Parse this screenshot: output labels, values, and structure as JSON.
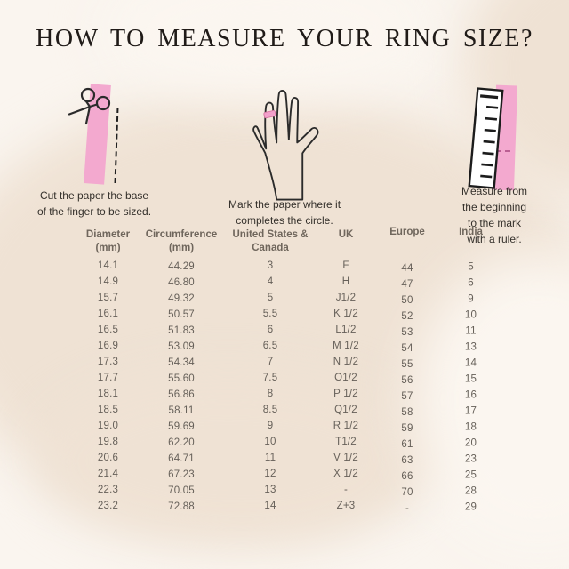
{
  "title": "HOW TO MEASURE YOUR RING SIZE?",
  "steps": [
    {
      "icon": "scissors-icon",
      "caption_line1": "Cut the paper the base",
      "caption_line2": "of the finger to be sized."
    },
    {
      "icon": "hand-ring-icon",
      "caption_line1": "Mark the paper where it",
      "caption_line2": "completes the circle."
    },
    {
      "icon": "ruler-icon",
      "caption_line1": "Measure from the beginning",
      "caption_line2": "to the mark with a ruler."
    }
  ],
  "table": {
    "headers": [
      {
        "lines": [
          "Diameter",
          "(mm)"
        ]
      },
      {
        "lines": [
          "Circumference",
          "(mm)"
        ]
      },
      {
        "lines": [
          "United States &",
          "Canada"
        ]
      },
      {
        "lines": [
          "UK"
        ]
      },
      {
        "lines": [
          "Europe"
        ]
      },
      {
        "lines": [
          "India"
        ]
      }
    ],
    "rows": [
      [
        "14.1",
        "44.29",
        "3",
        "F",
        "44",
        "5"
      ],
      [
        "14.9",
        "46.80",
        "4",
        "H",
        "47",
        "6"
      ],
      [
        "15.7",
        "49.32",
        "5",
        "J1/2",
        "50",
        "9"
      ],
      [
        "16.1",
        "50.57",
        "5.5",
        "K 1/2",
        "52",
        "10"
      ],
      [
        "16.5",
        "51.83",
        "6",
        "L1/2",
        "53",
        "11"
      ],
      [
        "16.9",
        "53.09",
        "6.5",
        "M 1/2",
        "54",
        "13"
      ],
      [
        "17.3",
        "54.34",
        "7",
        "N 1/2",
        "55",
        "14"
      ],
      [
        "17.7",
        "55.60",
        "7.5",
        "O1/2",
        "56",
        "15"
      ],
      [
        "18.1",
        "56.86",
        "8",
        "P 1/2",
        "57",
        "16"
      ],
      [
        "18.5",
        "58.11",
        "8.5",
        "Q1/2",
        "58",
        "17"
      ],
      [
        "19.0",
        "59.69",
        "9",
        "R 1/2",
        "59",
        "18"
      ],
      [
        "19.8",
        "62.20",
        "10",
        "T1/2",
        "61",
        "20"
      ],
      [
        "20.6",
        "64.71",
        "11",
        "V 1/2",
        "63",
        "23"
      ],
      [
        "21.4",
        "67.23",
        "12",
        "X 1/2",
        "66",
        "25"
      ],
      [
        "22.3",
        "70.05",
        "13",
        "-",
        "70",
        "28"
      ],
      [
        "23.2",
        "72.88",
        "14",
        "Z+3",
        "-",
        "29"
      ]
    ]
  },
  "colors": {
    "pink_strip": "#f3a9cf",
    "ring_mark": "#f2a0cb",
    "dash_mark": "#bb5f93",
    "background_base": "#faf5ef",
    "background_blob": "#efe2d4",
    "background_light": "#fbf6f0",
    "title_text": "#201b18",
    "caption_text": "#34302b",
    "table_header_text": "#6f665c",
    "table_value_text": "#666059",
    "line_art": "#2b2b2b"
  }
}
